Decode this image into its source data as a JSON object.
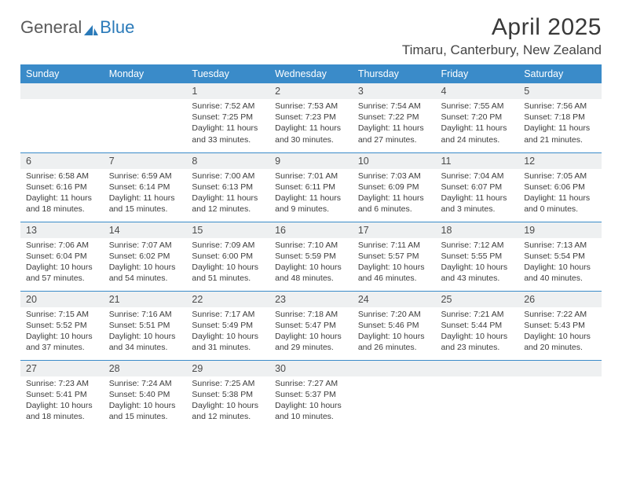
{
  "logo": {
    "text1": "General",
    "text2": "Blue"
  },
  "title": {
    "month": "April 2025",
    "location": "Timaru, Canterbury, New Zealand"
  },
  "colors": {
    "header_bg": "#3a8bc9",
    "header_fg": "#ffffff",
    "daynum_bg": "#eef0f1",
    "row_border": "#3a8bc9",
    "logo_gray": "#5a5a5a",
    "logo_blue": "#2a7ab9"
  },
  "weekdays": [
    "Sunday",
    "Monday",
    "Tuesday",
    "Wednesday",
    "Thursday",
    "Friday",
    "Saturday"
  ],
  "weeks": [
    [
      null,
      null,
      {
        "n": "1",
        "sunrise": "7:52 AM",
        "sunset": "7:25 PM",
        "dl": "11 hours and 33 minutes."
      },
      {
        "n": "2",
        "sunrise": "7:53 AM",
        "sunset": "7:23 PM",
        "dl": "11 hours and 30 minutes."
      },
      {
        "n": "3",
        "sunrise": "7:54 AM",
        "sunset": "7:22 PM",
        "dl": "11 hours and 27 minutes."
      },
      {
        "n": "4",
        "sunrise": "7:55 AM",
        "sunset": "7:20 PM",
        "dl": "11 hours and 24 minutes."
      },
      {
        "n": "5",
        "sunrise": "7:56 AM",
        "sunset": "7:18 PM",
        "dl": "11 hours and 21 minutes."
      }
    ],
    [
      {
        "n": "6",
        "sunrise": "6:58 AM",
        "sunset": "6:16 PM",
        "dl": "11 hours and 18 minutes."
      },
      {
        "n": "7",
        "sunrise": "6:59 AM",
        "sunset": "6:14 PM",
        "dl": "11 hours and 15 minutes."
      },
      {
        "n": "8",
        "sunrise": "7:00 AM",
        "sunset": "6:13 PM",
        "dl": "11 hours and 12 minutes."
      },
      {
        "n": "9",
        "sunrise": "7:01 AM",
        "sunset": "6:11 PM",
        "dl": "11 hours and 9 minutes."
      },
      {
        "n": "10",
        "sunrise": "7:03 AM",
        "sunset": "6:09 PM",
        "dl": "11 hours and 6 minutes."
      },
      {
        "n": "11",
        "sunrise": "7:04 AM",
        "sunset": "6:07 PM",
        "dl": "11 hours and 3 minutes."
      },
      {
        "n": "12",
        "sunrise": "7:05 AM",
        "sunset": "6:06 PM",
        "dl": "11 hours and 0 minutes."
      }
    ],
    [
      {
        "n": "13",
        "sunrise": "7:06 AM",
        "sunset": "6:04 PM",
        "dl": "10 hours and 57 minutes."
      },
      {
        "n": "14",
        "sunrise": "7:07 AM",
        "sunset": "6:02 PM",
        "dl": "10 hours and 54 minutes."
      },
      {
        "n": "15",
        "sunrise": "7:09 AM",
        "sunset": "6:00 PM",
        "dl": "10 hours and 51 minutes."
      },
      {
        "n": "16",
        "sunrise": "7:10 AM",
        "sunset": "5:59 PM",
        "dl": "10 hours and 48 minutes."
      },
      {
        "n": "17",
        "sunrise": "7:11 AM",
        "sunset": "5:57 PM",
        "dl": "10 hours and 46 minutes."
      },
      {
        "n": "18",
        "sunrise": "7:12 AM",
        "sunset": "5:55 PM",
        "dl": "10 hours and 43 minutes."
      },
      {
        "n": "19",
        "sunrise": "7:13 AM",
        "sunset": "5:54 PM",
        "dl": "10 hours and 40 minutes."
      }
    ],
    [
      {
        "n": "20",
        "sunrise": "7:15 AM",
        "sunset": "5:52 PM",
        "dl": "10 hours and 37 minutes."
      },
      {
        "n": "21",
        "sunrise": "7:16 AM",
        "sunset": "5:51 PM",
        "dl": "10 hours and 34 minutes."
      },
      {
        "n": "22",
        "sunrise": "7:17 AM",
        "sunset": "5:49 PM",
        "dl": "10 hours and 31 minutes."
      },
      {
        "n": "23",
        "sunrise": "7:18 AM",
        "sunset": "5:47 PM",
        "dl": "10 hours and 29 minutes."
      },
      {
        "n": "24",
        "sunrise": "7:20 AM",
        "sunset": "5:46 PM",
        "dl": "10 hours and 26 minutes."
      },
      {
        "n": "25",
        "sunrise": "7:21 AM",
        "sunset": "5:44 PM",
        "dl": "10 hours and 23 minutes."
      },
      {
        "n": "26",
        "sunrise": "7:22 AM",
        "sunset": "5:43 PM",
        "dl": "10 hours and 20 minutes."
      }
    ],
    [
      {
        "n": "27",
        "sunrise": "7:23 AM",
        "sunset": "5:41 PM",
        "dl": "10 hours and 18 minutes."
      },
      {
        "n": "28",
        "sunrise": "7:24 AM",
        "sunset": "5:40 PM",
        "dl": "10 hours and 15 minutes."
      },
      {
        "n": "29",
        "sunrise": "7:25 AM",
        "sunset": "5:38 PM",
        "dl": "10 hours and 12 minutes."
      },
      {
        "n": "30",
        "sunrise": "7:27 AM",
        "sunset": "5:37 PM",
        "dl": "10 hours and 10 minutes."
      },
      null,
      null,
      null
    ]
  ],
  "labels": {
    "sunrise": "Sunrise: ",
    "sunset": "Sunset: ",
    "daylight": "Daylight: "
  }
}
